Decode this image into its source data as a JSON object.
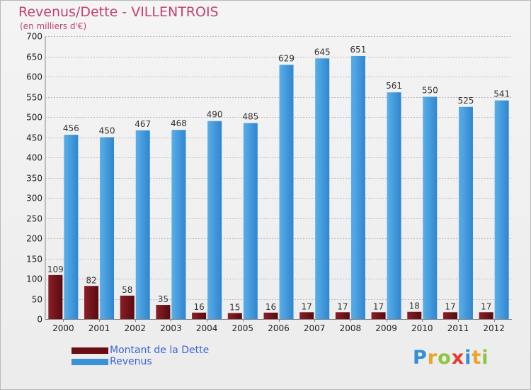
{
  "title": "Revenus/Dette - VILLENTROIS",
  "subtitle": "(en milliers d'€)",
  "logo": "Proxiti",
  "colors": {
    "dette": "#6b0d14",
    "revenus": "#3a92d8",
    "title": "#c1436a",
    "legend_text": "#3b63d8"
  },
  "chart_data": {
    "type": "bar",
    "title": "Revenus/Dette - VILLENTROIS",
    "ylabel": "(en milliers d'€)",
    "xlabel": "",
    "ylim": [
      0,
      700
    ],
    "yticks": [
      0,
      50,
      100,
      150,
      200,
      250,
      300,
      350,
      400,
      450,
      500,
      550,
      600,
      650,
      700
    ],
    "grid": true,
    "legend_position": "bottom-left",
    "categories": [
      "2000",
      "2001",
      "2002",
      "2003",
      "2004",
      "2005",
      "2006",
      "2007",
      "2008",
      "2009",
      "2010",
      "2011",
      "2012"
    ],
    "series": [
      {
        "name": "Montant de la Dette",
        "values": [
          109,
          82,
          58,
          35,
          16,
          15,
          16,
          17,
          17,
          17,
          18,
          17,
          17
        ]
      },
      {
        "name": "Revenus",
        "values": [
          456,
          450,
          467,
          468,
          490,
          485,
          629,
          645,
          651,
          561,
          550,
          525,
          541
        ]
      }
    ]
  }
}
